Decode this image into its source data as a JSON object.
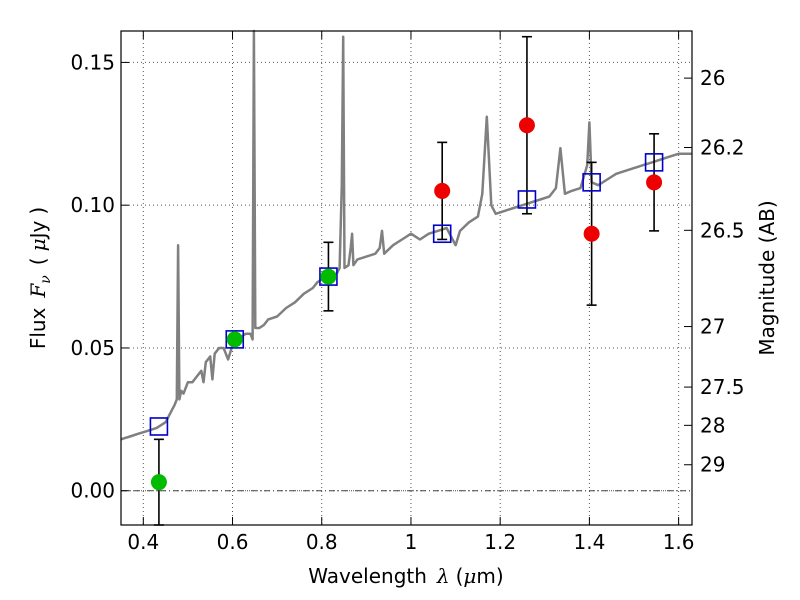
{
  "chart_data": {
    "type": "scatter",
    "xlabel": "Wavelength",
    "xlabel_symbol": "λ",
    "xlabel_unit_open": "(",
    "xlabel_unit_mu": "μ",
    "xlabel_unit_rest": "m)",
    "ylabel": "Flux",
    "ylabel_symbol": "F",
    "ylabel_symbol_sub": "ν",
    "ylabel_unit_open": "(",
    "ylabel_unit_mu": "μ",
    "ylabel_unit_rest": "Jy",
    "ylabel_unit_close": ")",
    "y2label": "Magnitude (AB)",
    "xlim": [
      0.35,
      1.63
    ],
    "ylim": [
      -0.012,
      0.161
    ],
    "grid": true,
    "x_ticks": [
      0.4,
      0.6,
      0.8,
      1.0,
      1.2,
      1.4,
      1.6
    ],
    "x_tick_labels": [
      "0.4",
      "0.6",
      "0.8",
      "1",
      "1.2",
      "1.4",
      "1.6"
    ],
    "y_ticks": [
      0.0,
      0.05,
      0.1,
      0.15
    ],
    "y_tick_labels": [
      "0.00",
      "0.05",
      "0.10",
      "0.15"
    ],
    "y2_ticks": [
      {
        "label": "26",
        "flux": 0.1445
      },
      {
        "label": "26.2",
        "flux": 0.1202
      },
      {
        "label": "26.5",
        "flux": 0.0912
      },
      {
        "label": "27",
        "flux": 0.0575
      },
      {
        "label": "27.5",
        "flux": 0.0363
      },
      {
        "label": "28",
        "flux": 0.0229
      },
      {
        "label": "29",
        "flux": 0.0091
      }
    ],
    "colors": {
      "spectrum": "#808080",
      "model_points": "#0000cc",
      "green_points": "#00bb00",
      "red_points": "#ee0000",
      "errorbars": "#000000",
      "grid": "#555555"
    },
    "series": [
      {
        "name": "",
        "kind": "line",
        "points": [
          [
            0.35,
            0.018
          ],
          [
            0.37,
            0.019
          ],
          [
            0.39,
            0.02
          ],
          [
            0.41,
            0.021
          ],
          [
            0.43,
            0.022
          ],
          [
            0.45,
            0.024
          ],
          [
            0.46,
            0.027
          ],
          [
            0.47,
            0.03
          ],
          [
            0.475,
            0.032
          ],
          [
            0.478,
            0.086
          ],
          [
            0.481,
            0.032
          ],
          [
            0.485,
            0.035
          ],
          [
            0.49,
            0.034
          ],
          [
            0.5,
            0.038
          ],
          [
            0.51,
            0.038
          ],
          [
            0.52,
            0.04
          ],
          [
            0.53,
            0.042
          ],
          [
            0.535,
            0.038
          ],
          [
            0.54,
            0.045
          ],
          [
            0.55,
            0.047
          ],
          [
            0.555,
            0.039
          ],
          [
            0.56,
            0.048
          ],
          [
            0.57,
            0.05
          ],
          [
            0.58,
            0.05
          ],
          [
            0.59,
            0.046
          ],
          [
            0.6,
            0.051
          ],
          [
            0.61,
            0.052
          ],
          [
            0.62,
            0.054
          ],
          [
            0.63,
            0.055
          ],
          [
            0.64,
            0.055
          ],
          [
            0.645,
            0.053
          ],
          [
            0.648,
            0.161
          ],
          [
            0.651,
            0.057
          ],
          [
            0.66,
            0.057
          ],
          [
            0.67,
            0.058
          ],
          [
            0.68,
            0.06
          ],
          [
            0.7,
            0.061
          ],
          [
            0.72,
            0.064
          ],
          [
            0.74,
            0.066
          ],
          [
            0.76,
            0.069
          ],
          [
            0.78,
            0.071
          ],
          [
            0.79,
            0.073
          ],
          [
            0.8,
            0.074
          ],
          [
            0.81,
            0.075
          ],
          [
            0.82,
            0.076
          ],
          [
            0.83,
            0.075
          ],
          [
            0.84,
            0.078
          ],
          [
            0.845,
            0.107
          ],
          [
            0.848,
            0.159
          ],
          [
            0.851,
            0.078
          ],
          [
            0.86,
            0.079
          ],
          [
            0.865,
            0.085
          ],
          [
            0.868,
            0.09
          ],
          [
            0.871,
            0.079
          ],
          [
            0.88,
            0.081
          ],
          [
            0.9,
            0.082
          ],
          [
            0.92,
            0.083
          ],
          [
            0.93,
            0.085
          ],
          [
            0.935,
            0.091
          ],
          [
            0.94,
            0.083
          ],
          [
            0.96,
            0.086
          ],
          [
            0.98,
            0.088
          ],
          [
            1.0,
            0.09
          ],
          [
            1.01,
            0.089
          ],
          [
            1.02,
            0.088
          ],
          [
            1.04,
            0.09
          ],
          [
            1.06,
            0.091
          ],
          [
            1.08,
            0.092
          ],
          [
            1.09,
            0.089
          ],
          [
            1.1,
            0.086
          ],
          [
            1.11,
            0.091
          ],
          [
            1.13,
            0.094
          ],
          [
            1.15,
            0.096
          ],
          [
            1.16,
            0.104
          ],
          [
            1.17,
            0.131
          ],
          [
            1.18,
            0.1
          ],
          [
            1.19,
            0.097
          ],
          [
            1.21,
            0.098
          ],
          [
            1.23,
            0.099
          ],
          [
            1.25,
            0.1
          ],
          [
            1.27,
            0.101
          ],
          [
            1.29,
            0.102
          ],
          [
            1.31,
            0.103
          ],
          [
            1.325,
            0.106
          ],
          [
            1.335,
            0.12
          ],
          [
            1.345,
            0.104
          ],
          [
            1.36,
            0.105
          ],
          [
            1.38,
            0.106
          ],
          [
            1.395,
            0.114
          ],
          [
            1.4,
            0.129
          ],
          [
            1.405,
            0.108
          ],
          [
            1.42,
            0.107
          ],
          [
            1.44,
            0.109
          ],
          [
            1.46,
            0.111
          ],
          [
            1.48,
            0.112
          ],
          [
            1.5,
            0.113
          ],
          [
            1.52,
            0.114
          ],
          [
            1.54,
            0.115
          ],
          [
            1.56,
            0.116
          ],
          [
            1.58,
            0.117
          ],
          [
            1.6,
            0.118
          ],
          [
            1.63,
            0.118
          ]
        ]
      },
      {
        "name": "",
        "kind": "open-square",
        "x": [
          0.435,
          0.605,
          0.815,
          1.07,
          1.26,
          1.405,
          1.545
        ],
        "y": [
          0.0225,
          0.053,
          0.075,
          0.09,
          0.102,
          0.108,
          0.115
        ]
      },
      {
        "name": "",
        "kind": "point-errorbar",
        "x": [
          0.435,
          0.605,
          0.815
        ],
        "y": [
          0.003,
          0.053,
          0.075
        ],
        "err": [
          0.015,
          0.002,
          0.012
        ]
      },
      {
        "name": "",
        "kind": "point-errorbar",
        "x": [
          1.07,
          1.26,
          1.405,
          1.545
        ],
        "y": [
          0.105,
          0.128,
          0.09,
          0.108
        ],
        "err": [
          0.017,
          0.031,
          0.025,
          0.017
        ]
      }
    ]
  }
}
